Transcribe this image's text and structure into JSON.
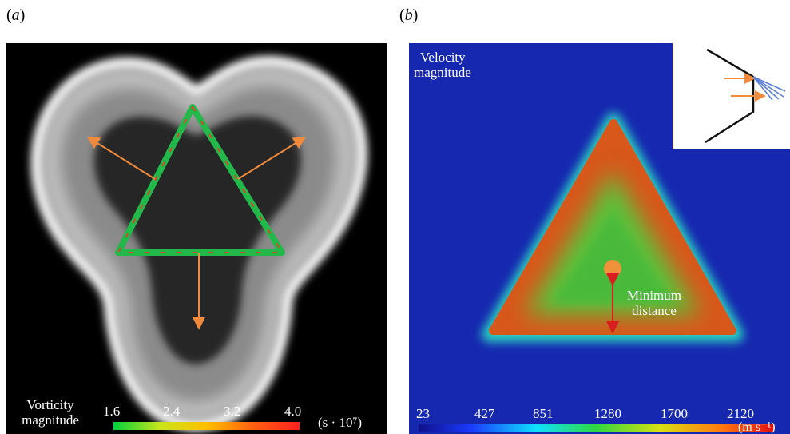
{
  "panel_a": {
    "label": "a",
    "colorbar": {
      "title_line1": "Vorticity",
      "title_line2": "magnitude",
      "ticks": [
        "1.6",
        "2.4",
        "3.2",
        "4.0"
      ],
      "unit": "(s · 10⁷)"
    }
  },
  "panel_b": {
    "label": "b",
    "title_line1": "Velocity",
    "title_line2": "magnitude",
    "annotation_line1": "Minimum",
    "annotation_line2": "distance",
    "colorbar": {
      "ticks": [
        "23",
        "427",
        "851",
        "1280",
        "1700",
        "2120"
      ],
      "unit": "(m s⁻¹)"
    }
  },
  "colors": {
    "arrow_orange": "#f08a3c",
    "background_blue": "#1628b0",
    "min_distance_red": "#d81e1e",
    "inset_border": "#e8834d",
    "inset_rays": "#5a7fd6"
  }
}
